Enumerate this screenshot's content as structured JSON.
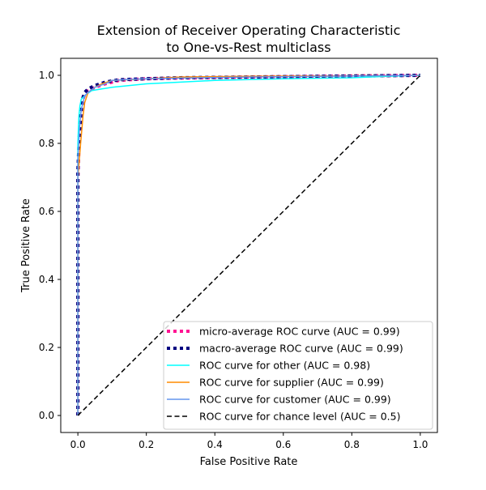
{
  "chart_data": {
    "type": "line",
    "title_lines": [
      "Extension of Receiver Operating Characteristic",
      "to One-vs-Rest multiclass"
    ],
    "xlabel": "False Positive Rate",
    "ylabel": "True Positive Rate",
    "xlim": [
      -0.05,
      1.05
    ],
    "ylim": [
      -0.05,
      1.05
    ],
    "xticks": [
      0.0,
      0.2,
      0.4,
      0.6,
      0.8,
      1.0
    ],
    "yticks": [
      0.0,
      0.2,
      0.4,
      0.6,
      0.8,
      1.0
    ],
    "xtick_labels": [
      "0.0",
      "0.2",
      "0.4",
      "0.6",
      "0.8",
      "1.0"
    ],
    "ytick_labels": [
      "0.0",
      "0.2",
      "0.4",
      "0.6",
      "0.8",
      "1.0"
    ],
    "grid": false,
    "legend_position": "lower-right",
    "series": [
      {
        "name": "micro-average ROC curve (AUC = 0.99)",
        "color": "#ff1493",
        "style": "dotted",
        "width": 4,
        "x": [
          0,
          0,
          0.005,
          0.01,
          0.015,
          0.02,
          0.03,
          0.05,
          0.08,
          0.12,
          0.2,
          0.3,
          0.5,
          0.7,
          0.9,
          1.0
        ],
        "y": [
          0,
          0.7,
          0.83,
          0.9,
          0.93,
          0.945,
          0.955,
          0.965,
          0.975,
          0.985,
          0.99,
          0.992,
          0.995,
          0.997,
          0.999,
          1.0
        ]
      },
      {
        "name": "macro-average ROC curve (AUC = 0.99)",
        "color": "#000080",
        "style": "dotted",
        "width": 4,
        "x": [
          0,
          0,
          0.005,
          0.01,
          0.015,
          0.02,
          0.03,
          0.05,
          0.08,
          0.12,
          0.2,
          0.3,
          0.5,
          0.7,
          0.9,
          1.0
        ],
        "y": [
          0,
          0.72,
          0.84,
          0.9,
          0.935,
          0.95,
          0.96,
          0.97,
          0.98,
          0.987,
          0.99,
          0.993,
          0.995,
          0.997,
          0.999,
          1.0
        ]
      },
      {
        "name": "ROC curve for other (AUC = 0.98)",
        "color": "#00ffff",
        "style": "solid",
        "width": 1.5,
        "x": [
          0,
          0,
          0.003,
          0.006,
          0.01,
          0.015,
          0.02,
          0.04,
          0.07,
          0.1,
          0.15,
          0.2,
          0.3,
          0.4,
          0.6,
          0.8,
          0.9,
          1.0
        ],
        "y": [
          0,
          0.8,
          0.88,
          0.91,
          0.93,
          0.935,
          0.94,
          0.955,
          0.96,
          0.965,
          0.97,
          0.975,
          0.98,
          0.985,
          0.99,
          0.993,
          0.997,
          1.0
        ]
      },
      {
        "name": "ROC curve for supplier (AUC = 0.99)",
        "color": "#ff8c00",
        "style": "solid",
        "width": 1.5,
        "x": [
          0,
          0,
          0.008,
          0.015,
          0.02,
          0.03,
          0.05,
          0.07,
          0.1,
          0.2,
          0.3,
          0.5,
          0.7,
          0.9,
          1.0
        ],
        "y": [
          0,
          0.7,
          0.8,
          0.88,
          0.92,
          0.95,
          0.965,
          0.975,
          0.985,
          0.99,
          0.995,
          0.997,
          0.998,
          0.999,
          1.0
        ]
      },
      {
        "name": "ROC curve for customer (AUC = 0.99)",
        "color": "#6495ed",
        "style": "solid",
        "width": 1.5,
        "x": [
          0,
          0,
          0.005,
          0.01,
          0.02,
          0.03,
          0.05,
          0.08,
          0.1,
          0.15,
          0.2,
          0.3,
          0.5,
          0.7,
          0.9,
          1.0
        ],
        "y": [
          0,
          0.75,
          0.85,
          0.9,
          0.94,
          0.95,
          0.965,
          0.975,
          0.985,
          0.988,
          0.99,
          0.992,
          0.995,
          0.997,
          0.999,
          1.0
        ]
      },
      {
        "name": "ROC curve for chance level (AUC = 0.5)",
        "color": "#000000",
        "style": "dashed",
        "width": 1.5,
        "x": [
          0,
          1
        ],
        "y": [
          0,
          1
        ]
      }
    ]
  }
}
